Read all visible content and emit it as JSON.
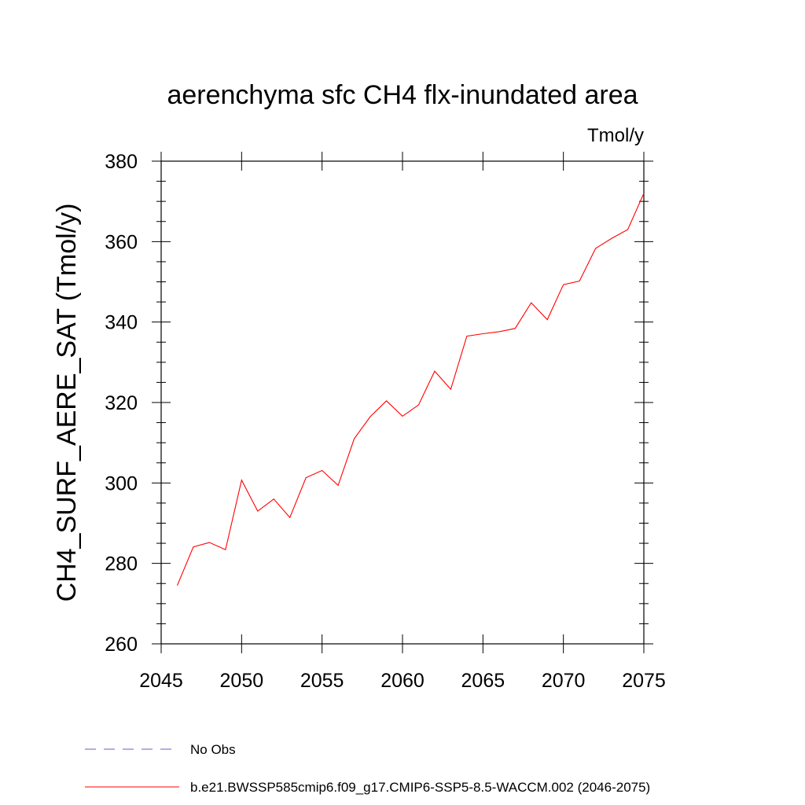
{
  "chart_data": {
    "type": "line",
    "title": "aerenchyma sfc CH4 flx-inundated area",
    "units": "Tmol/y",
    "xlabel": "",
    "ylabel": "CH4_SURF_AERE_SAT  (Tmol/y)",
    "xlim": [
      2045,
      2075
    ],
    "ylim": [
      260,
      380
    ],
    "x_ticks": [
      2045,
      2050,
      2055,
      2060,
      2065,
      2070,
      2075
    ],
    "x_tick_labels": [
      "2045",
      "2050",
      "2055",
      "2060",
      "2065",
      "2070",
      "2075"
    ],
    "y_ticks": [
      260,
      280,
      300,
      320,
      340,
      360,
      380
    ],
    "y_tick_labels": [
      "260",
      "280",
      "300",
      "320",
      "340",
      "360",
      "380"
    ],
    "grid": false,
    "legend_position": "bottom",
    "series": [
      {
        "name": "No Obs",
        "color": "#6a5acd",
        "dash": "dashed",
        "x": [],
        "values": []
      },
      {
        "name": "b.e21.BWSSP585cmip6.f09_g17.CMIP6-SSP5-8.5-WACCM.002 (2046-2075)",
        "color": "#ff0000",
        "dash": "solid",
        "x": [
          2046,
          2047,
          2048,
          2049,
          2050,
          2051,
          2052,
          2053,
          2054,
          2055,
          2056,
          2057,
          2058,
          2059,
          2060,
          2061,
          2062,
          2063,
          2064,
          2065,
          2066,
          2067,
          2068,
          2069,
          2070,
          2071,
          2072,
          2073,
          2074,
          2075
        ],
        "values": [
          274.5,
          284.1,
          285.2,
          283.4,
          300.7,
          293.0,
          296.0,
          291.4,
          301.3,
          303.1,
          299.4,
          311.0,
          316.5,
          320.4,
          316.6,
          319.4,
          327.8,
          323.3,
          336.5,
          337.1,
          337.6,
          338.4,
          344.8,
          340.6,
          349.3,
          350.2,
          358.3,
          360.8,
          363.0,
          372.0
        ]
      }
    ]
  }
}
